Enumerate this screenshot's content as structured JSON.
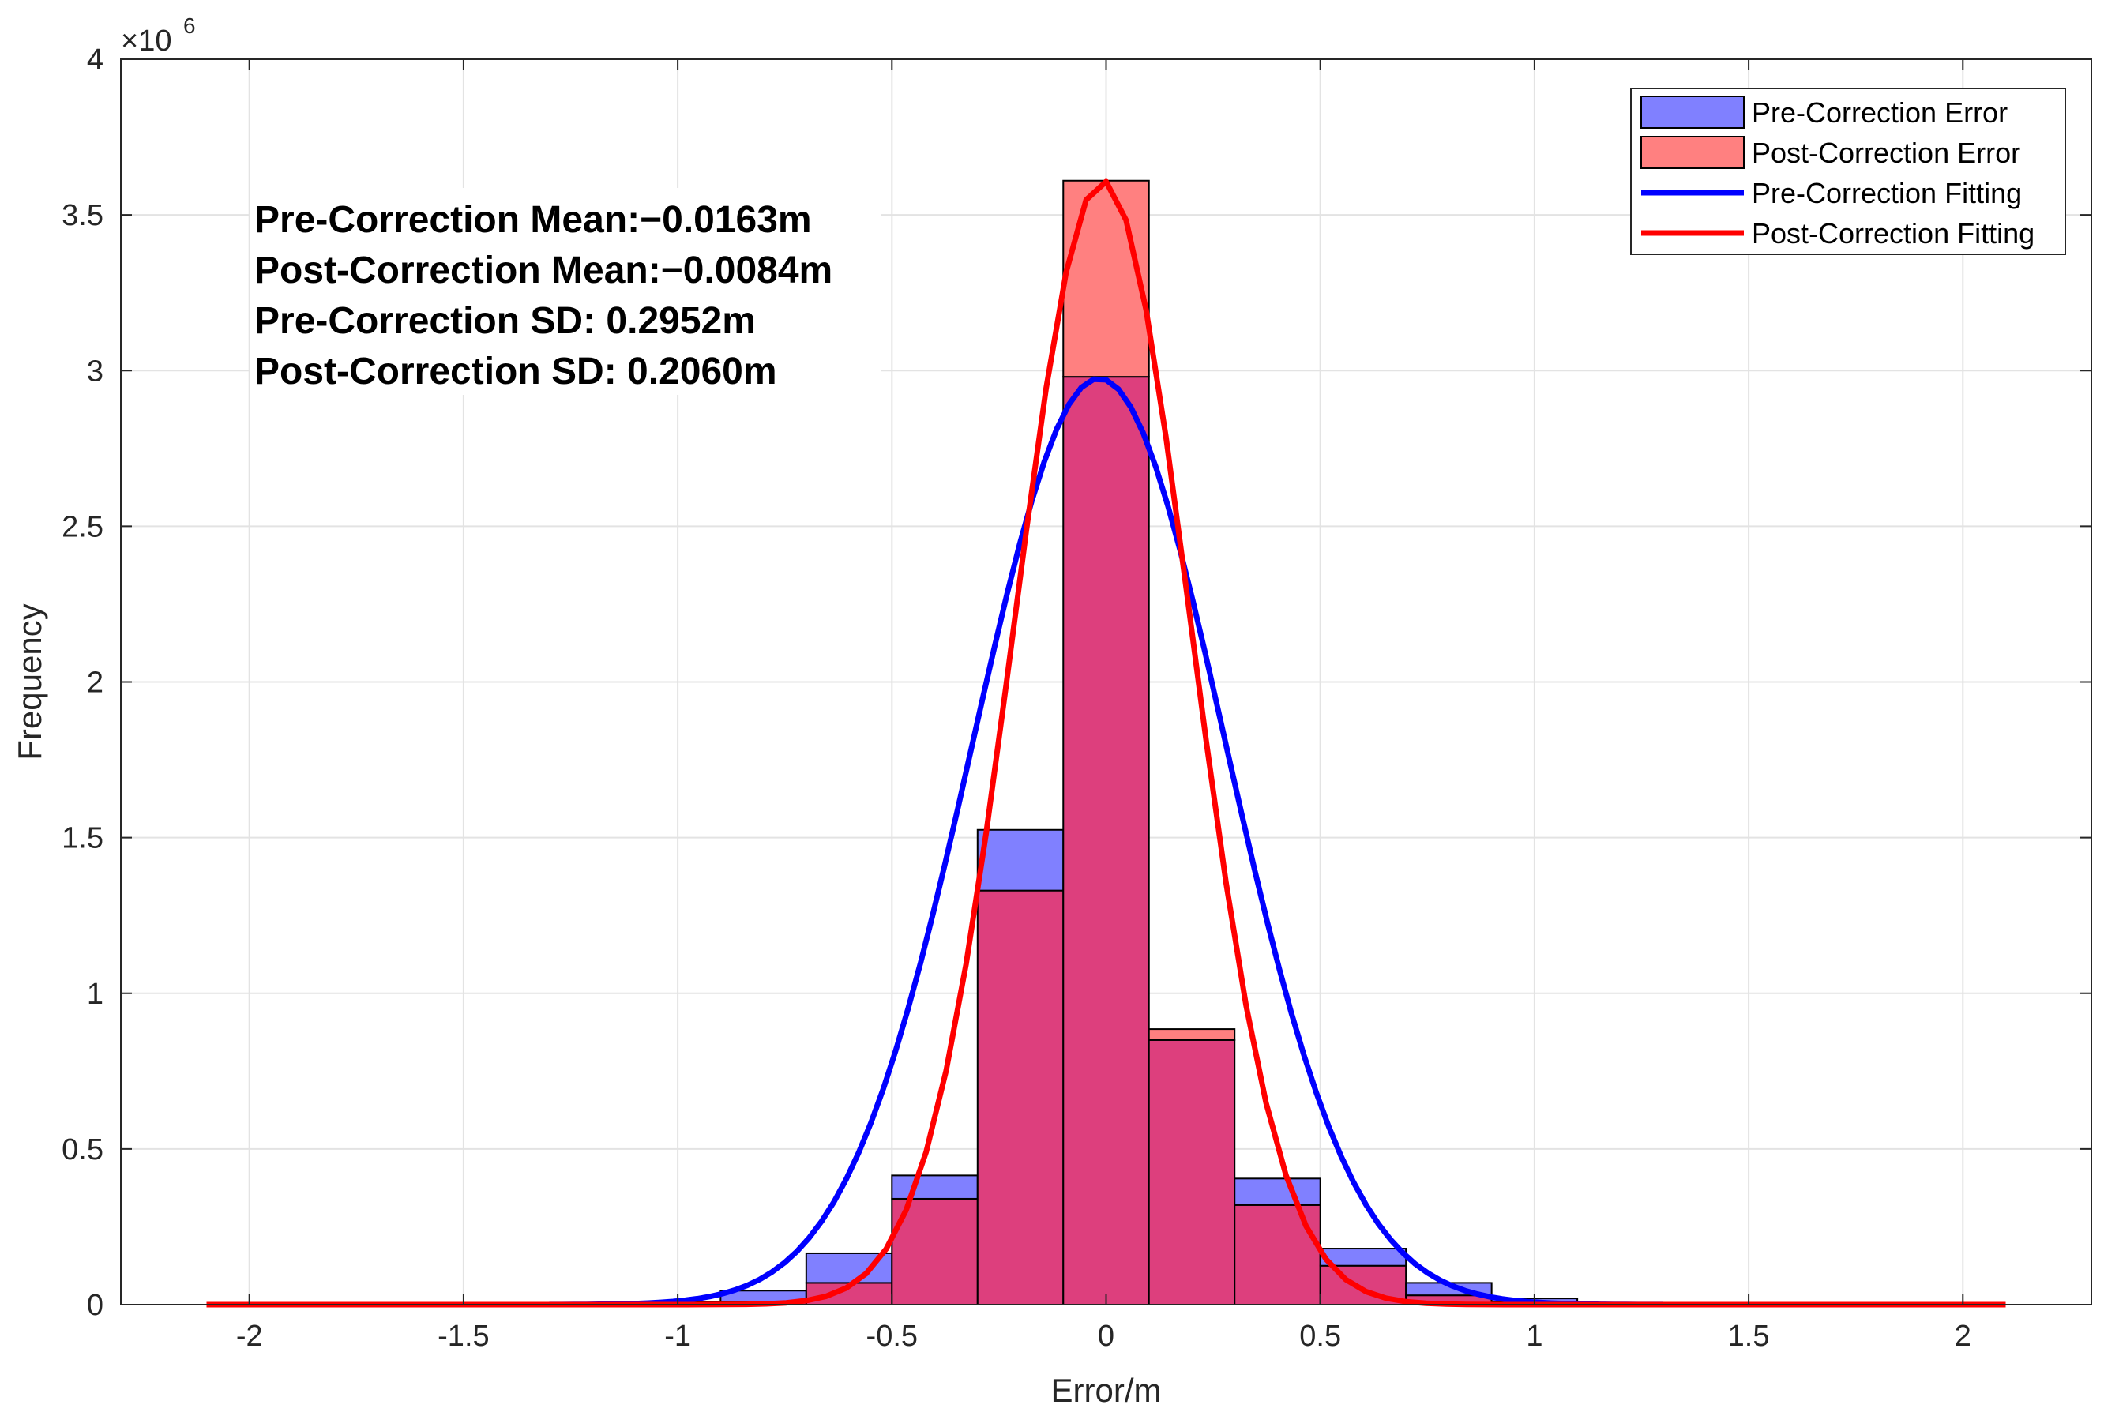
{
  "chart_data": {
    "type": "histogram",
    "xlabel": "Error/m",
    "ylabel": "Frequency",
    "exponent_label": "×10",
    "exponent_power": "6",
    "xlim": [
      -2.3,
      2.3
    ],
    "ylim": [
      0,
      4
    ],
    "x_ticks": [
      -2,
      -1.5,
      -1,
      -0.5,
      0,
      0.5,
      1,
      1.5,
      2
    ],
    "x_tick_labels": [
      "-2",
      "-1.5",
      "-1",
      "-0.5",
      "0",
      "0.5",
      "1",
      "1.5",
      "2"
    ],
    "y_ticks": [
      0,
      0.5,
      1,
      1.5,
      2,
      2.5,
      3,
      3.5,
      4
    ],
    "y_tick_labels": [
      "0",
      "0.5",
      "1",
      "1.5",
      "2",
      "2.5",
      "3",
      "3.5",
      "4"
    ],
    "grid": true,
    "bin_edges": [
      -1.1,
      -0.9,
      -0.7,
      -0.5,
      -0.3,
      -0.1,
      0.1,
      0.3,
      0.5,
      0.7,
      0.9,
      1.1,
      1.3
    ],
    "series": [
      {
        "name": "Pre-Correction Error",
        "kind": "bar",
        "color": "#8080ff",
        "values": [
          0.01,
          0.045,
          0.165,
          0.415,
          1.525,
          2.98,
          0.85,
          0.405,
          0.18,
          0.07,
          0.02,
          0.005
        ]
      },
      {
        "name": "Post-Correction Error",
        "kind": "bar",
        "color": "#ff8080",
        "values": [
          0.0,
          0.01,
          0.07,
          0.34,
          1.33,
          3.61,
          0.885,
          0.32,
          0.125,
          0.03,
          0.01,
          0.005
        ]
      },
      {
        "name": "Pre-Correction Fitting",
        "kind": "line",
        "color": "#0000ff",
        "distribution": "normal",
        "mean": -0.0163,
        "sd": 0.2952,
        "peak": 2.975,
        "x_range": [
          -1.3,
          1.3
        ]
      },
      {
        "name": "Post-Correction Fitting",
        "kind": "line",
        "color": "#ff0000",
        "distribution": "normal",
        "mean": -0.0084,
        "sd": 0.206,
        "peak": 3.61,
        "x_range": [
          -2.1,
          2.1
        ]
      }
    ],
    "overlap_color": "#dd3f7d",
    "annotations": [
      "Pre-Correction Mean:−0.0163m",
      "Post-Correction Mean:−0.0084m",
      "Pre-Correction SD: 0.2952m",
      "Post-Correction SD: 0.2060m"
    ],
    "legend_position": "top-right"
  }
}
